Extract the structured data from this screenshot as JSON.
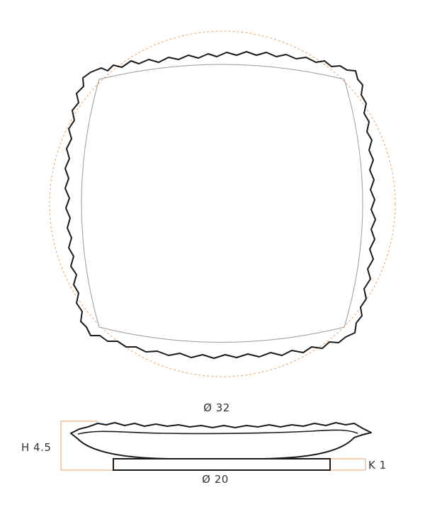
{
  "colors": {
    "outline": "#1a1a1a",
    "inner_line": "#9a9a9a",
    "dimension_accent": "#f0a060",
    "text": "#333333"
  },
  "dimensions": {
    "diameter_top": "Ø 32",
    "height": "H 4.5",
    "foot_thickness": "K 1",
    "diameter_base": "Ø 20"
  }
}
